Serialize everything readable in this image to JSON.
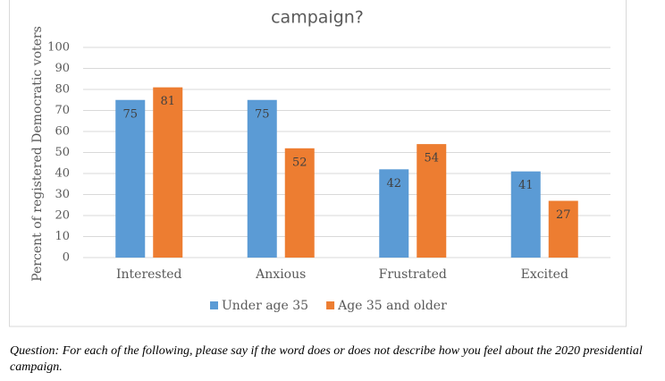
{
  "chart_data": {
    "type": "bar",
    "title": "campaign?",
    "y_label": "Percent of registered Democratic voters",
    "categories": [
      "Interested",
      "Anxious",
      "Frustrated",
      "Excited"
    ],
    "series": [
      {
        "name": "Under age 35",
        "color": "#5b9bd5",
        "values": [
          75,
          75,
          42,
          41
        ]
      },
      {
        "name": "Age 35 and older",
        "color": "#ed7d31",
        "values": [
          81,
          52,
          54,
          27
        ]
      }
    ],
    "ylim": [
      0,
      100
    ],
    "yticks": [
      0,
      10,
      20,
      30,
      40,
      50,
      60,
      70,
      80,
      90,
      100
    ],
    "grid": true,
    "legend": "bottom"
  },
  "note": "Question: For each of the following, please say if the word does or does not describe how you feel about the 2020 presidential campaign."
}
